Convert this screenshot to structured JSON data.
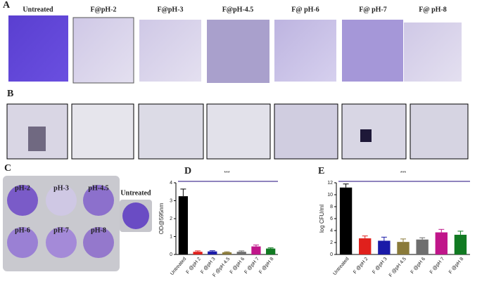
{
  "panels": {
    "a": "A",
    "b": "B",
    "c": "C",
    "d": "D",
    "e": "E"
  },
  "row_a": [
    "Untreated",
    "F@pH-2",
    "F@pH-3",
    "F@pH-4.5",
    "F@ pH-6",
    "F@ pH-7",
    "F@ pH-8"
  ],
  "plate": [
    "pH-2",
    "pH-3",
    "pH-4.5",
    "pH-6",
    "pH-7",
    "pH-8"
  ],
  "untreated_well": "Untreated",
  "chart_data": [
    {
      "type": "bar",
      "ylabel": "OD@595nm",
      "annotation": "***",
      "categories": [
        "Untreated",
        "F @pH 2",
        "F @pH 3",
        "F @pH 4.5",
        "F @pH 6",
        "F @pH 7",
        "F @pH 8"
      ],
      "values": [
        3.25,
        0.15,
        0.17,
        0.12,
        0.15,
        0.45,
        0.33
      ],
      "errors": [
        0.4,
        0.05,
        0.04,
        0.03,
        0.05,
        0.08,
        0.04
      ],
      "colors": [
        "#000000",
        "#e0201c",
        "#1a1aa8",
        "#8a7a3a",
        "#6e6e6e",
        "#c0168a",
        "#117a22"
      ],
      "ylim": [
        0,
        4
      ],
      "yticks": [
        0,
        1,
        2,
        3,
        4
      ]
    },
    {
      "type": "bar",
      "ylabel": "log CFU/ml",
      "annotation": "***",
      "categories": [
        "Untreated",
        "F @pH 2",
        "F @pH 3",
        "F @pH 4.5",
        "F @pH 6",
        "F @pH 7",
        "F @pH 8"
      ],
      "values": [
        11.2,
        2.7,
        2.3,
        2.1,
        2.5,
        3.7,
        3.3
      ],
      "errors": [
        0.6,
        0.4,
        0.6,
        0.5,
        0.3,
        0.5,
        0.6
      ],
      "colors": [
        "#000000",
        "#e0201c",
        "#1a1aa8",
        "#8a7a3a",
        "#6e6e6e",
        "#c0168a",
        "#117a22"
      ],
      "ylim": [
        0,
        12
      ],
      "yticks": [
        0,
        2,
        4,
        6,
        8,
        10,
        12
      ]
    }
  ]
}
